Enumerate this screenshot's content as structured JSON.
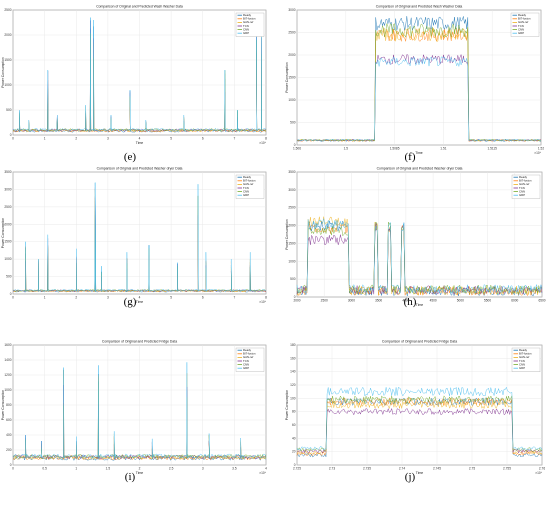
{
  "colors": {
    "Ready": "#1f77b4",
    "BiT-fusion": "#ff7f0e",
    "GAN-ref": "#edb120",
    "TCN": "#7e2f8e",
    "CNN": "#77ac30",
    "GRP": "#4dbeee"
  },
  "legend_entries": [
    "Ready",
    "BiT-fusion",
    "GAN-ref",
    "TCN",
    "CNN",
    "GRP"
  ],
  "panels": [
    {
      "label": "(e)",
      "title": "Comparison of Original and Predicted Wash Washer Data",
      "xlabel": "Time",
      "ylabel": "Power Consumption",
      "multiplier": "×10⁴",
      "yticks": [
        "0",
        "500",
        "1000",
        "1500",
        "2000",
        "2500"
      ],
      "xticks": [
        "0",
        "1",
        "2",
        "3",
        "4",
        "5",
        "6",
        "7",
        "8"
      ],
      "chart_data": {
        "type": "line",
        "ylim": [
          0,
          2500
        ],
        "xlim": [
          0,
          8
        ],
        "baseline": 80,
        "spikes": [
          {
            "x": 0.2,
            "y": 500
          },
          {
            "x": 0.5,
            "y": 300
          },
          {
            "x": 1.1,
            "y": 1300
          },
          {
            "x": 1.4,
            "y": 400
          },
          {
            "x": 2.3,
            "y": 600
          },
          {
            "x": 2.45,
            "y": 2350
          },
          {
            "x": 2.55,
            "y": 2300
          },
          {
            "x": 3.1,
            "y": 400
          },
          {
            "x": 3.7,
            "y": 900
          },
          {
            "x": 4.2,
            "y": 300
          },
          {
            "x": 5.0,
            "y": 1000
          },
          {
            "x": 5.4,
            "y": 400
          },
          {
            "x": 6.7,
            "y": 1300
          },
          {
            "x": 7.1,
            "y": 500
          },
          {
            "x": 7.7,
            "y": 2150
          },
          {
            "x": 7.85,
            "y": 2250
          }
        ]
      }
    },
    {
      "label": "(f)",
      "title": "Comparison of Original and Predicted Wash Washer Data",
      "xlabel": "Time",
      "ylabel": "Power Consumption",
      "multiplier": "×10⁴",
      "yticks": [
        "0",
        "500",
        "1000",
        "1500",
        "2000",
        "2500",
        "3000"
      ],
      "xticks": [
        "1.506",
        "1.5",
        "1.5085",
        "1.51",
        "1.5115",
        "1.52"
      ],
      "chart_data": {
        "type": "line",
        "ylim": [
          0,
          3000
        ],
        "on_start": 0.32,
        "on_end": 0.7,
        "off_level": 100,
        "levels": {
          "Ready": 2700,
          "BiT-fusion": 2450,
          "GAN-ref": 2450,
          "TCN": 1900,
          "CNN": 2550,
          "GRP": 1850
        }
      }
    },
    {
      "label": "(g)",
      "title": "Comparison of Original and Predicted Washer dryer Data",
      "xlabel": "Time",
      "ylabel": "Power Consumption",
      "multiplier": "×10⁴",
      "yticks": [
        "0",
        "500",
        "1000",
        "1500",
        "2000",
        "2500",
        "3000",
        "3500"
      ],
      "xticks": [
        "0",
        "1",
        "2",
        "3",
        "4",
        "5",
        "6",
        "7",
        "8"
      ],
      "chart_data": {
        "type": "line",
        "ylim": [
          0,
          3500
        ],
        "xlim": [
          0,
          8
        ],
        "baseline": 80,
        "spikes": [
          {
            "x": 0.4,
            "y": 1500
          },
          {
            "x": 0.6,
            "y": 3300
          },
          {
            "x": 0.8,
            "y": 1000
          },
          {
            "x": 1.1,
            "y": 1700
          },
          {
            "x": 2.0,
            "y": 1300
          },
          {
            "x": 2.6,
            "y": 3200
          },
          {
            "x": 2.8,
            "y": 800
          },
          {
            "x": 3.6,
            "y": 1200
          },
          {
            "x": 4.3,
            "y": 1400
          },
          {
            "x": 5.2,
            "y": 900
          },
          {
            "x": 5.85,
            "y": 3150
          },
          {
            "x": 6.1,
            "y": 1200
          },
          {
            "x": 6.9,
            "y": 1000
          },
          {
            "x": 7.5,
            "y": 1200
          }
        ]
      }
    },
    {
      "label": "(h)",
      "title": "Comparison of Original and Predicted Washer dryer Data",
      "xlabel": "Time",
      "ylabel": "Power Consumption",
      "multiplier": "",
      "yticks": [
        "0",
        "500",
        "1000",
        "1500",
        "2000",
        "2500",
        "3000",
        "3500"
      ],
      "xticks": [
        "2000",
        "2500",
        "3000",
        "3500",
        "4000",
        "4500",
        "5000",
        "5500",
        "6000",
        "6500"
      ],
      "chart_data": {
        "type": "line",
        "ylim": [
          0,
          3500
        ],
        "xlim": [
          2000,
          6500
        ],
        "on_start": 2200,
        "on_end": 2950,
        "off_level": 100,
        "pulses": [
          3450,
          3700,
          3950
        ]
      }
    },
    {
      "label": "(i)",
      "title": "Comparison of Original and Predicted Fridge Data",
      "xlabel": "Time",
      "ylabel": "Power Consumption",
      "multiplier": "×10⁴",
      "yticks": [
        "0",
        "200",
        "400",
        "600",
        "800",
        "1000",
        "1200",
        "1400",
        "1600"
      ],
      "xticks": [
        "0",
        "0.5",
        "1",
        "1.5",
        "2",
        "2.5",
        "3",
        "3.5",
        "4"
      ],
      "chart_data": {
        "type": "line",
        "ylim": [
          0,
          1600
        ],
        "xlim": [
          0,
          4
        ],
        "baseline": 90,
        "spikes": [
          {
            "x": 0.2,
            "y": 400
          },
          {
            "x": 0.45,
            "y": 320
          },
          {
            "x": 0.8,
            "y": 1300
          },
          {
            "x": 1.0,
            "y": 380
          },
          {
            "x": 1.35,
            "y": 1330
          },
          {
            "x": 1.6,
            "y": 450
          },
          {
            "x": 2.2,
            "y": 350
          },
          {
            "x": 2.75,
            "y": 1370
          },
          {
            "x": 3.1,
            "y": 420
          },
          {
            "x": 3.6,
            "y": 360
          }
        ]
      }
    },
    {
      "label": "(j)",
      "title": "Comparison of Original and Predicted Fridge Data",
      "xlabel": "Time",
      "ylabel": "Power Consumption",
      "multiplier": "×10⁴",
      "yticks": [
        "0",
        "20",
        "40",
        "60",
        "80",
        "100",
        "120",
        "140",
        "160",
        "180"
      ],
      "xticks": [
        "2.725",
        "2.73",
        "2.735",
        "2.74",
        "2.745",
        "2.75",
        "2.755",
        "2.76"
      ],
      "chart_data": {
        "type": "line",
        "ylim": [
          0,
          180
        ],
        "on_start": 0.12,
        "on_end": 0.88,
        "off_level": 15,
        "levels": {
          "Ready": 95,
          "BiT-fusion": 95,
          "GAN-ref": 90,
          "TCN": 80,
          "CNN": 98,
          "GRP": 110
        }
      }
    }
  ]
}
